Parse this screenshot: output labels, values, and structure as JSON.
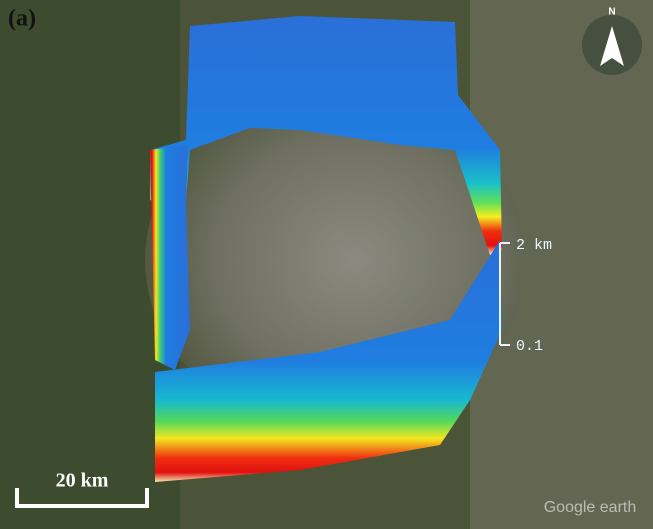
{
  "panel_label": "(a)",
  "scale_bar": "20 km",
  "height_labels": [
    "2 km",
    "0.1"
  ],
  "compass": "N",
  "attribution": "Google earth"
}
